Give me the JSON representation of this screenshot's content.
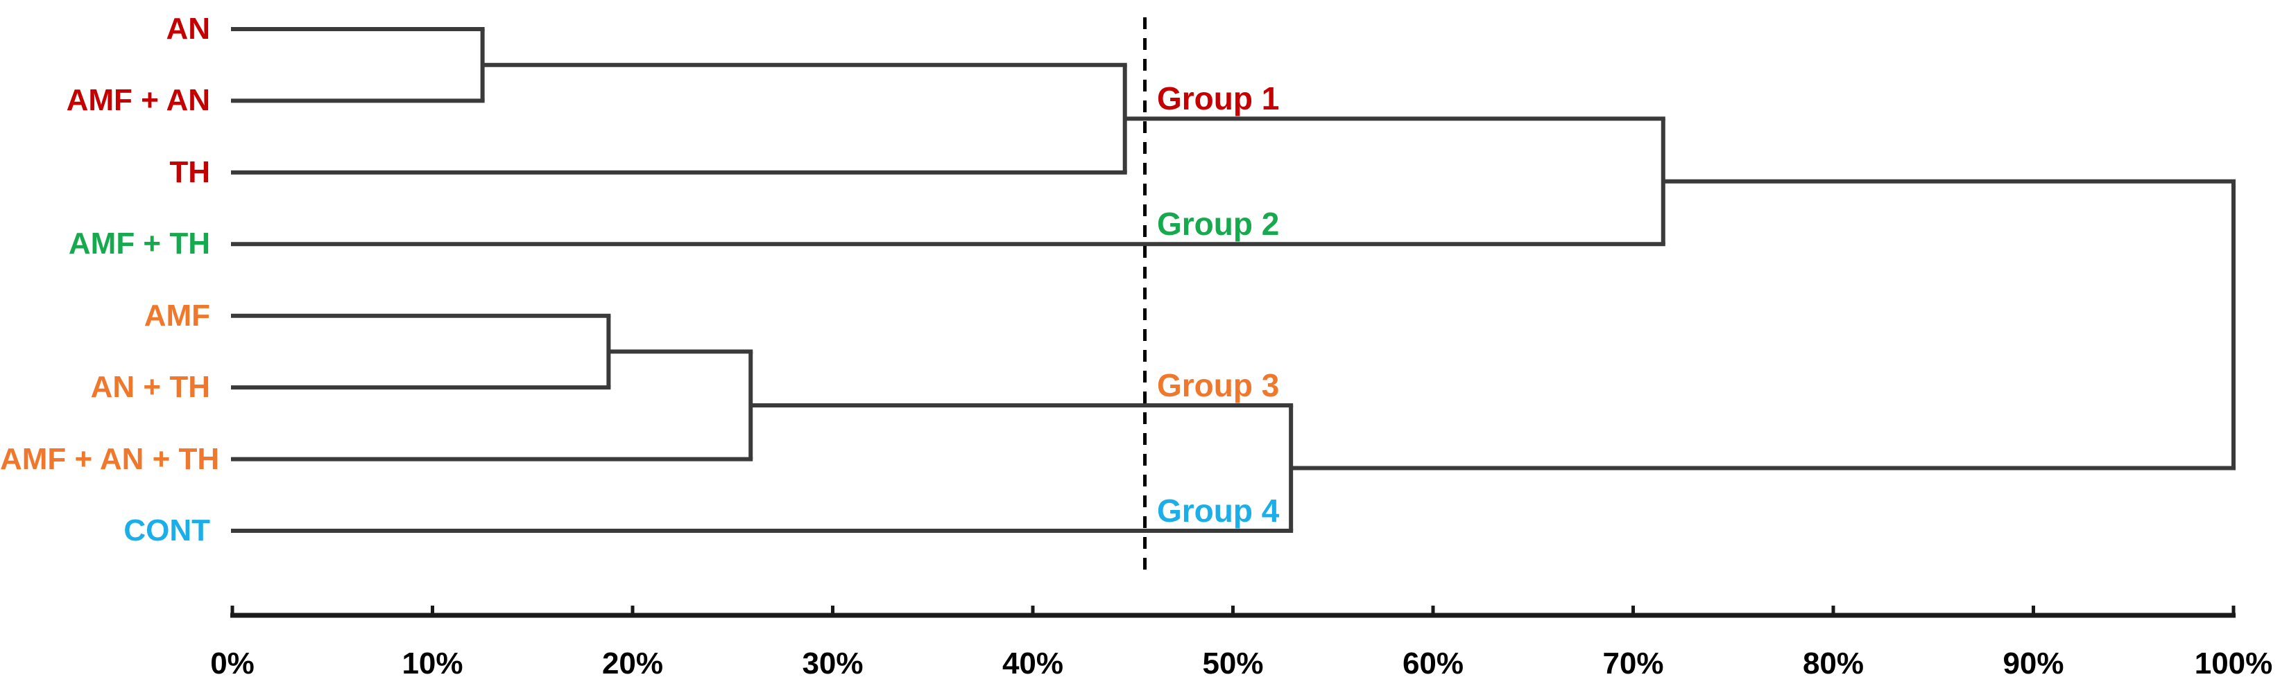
{
  "chart_data": {
    "type": "dendrogram",
    "orientation": "horizontal-left-to-right",
    "similarity_axis": {
      "min_pct": 0,
      "max_pct": 100,
      "step_pct": 10,
      "tick_labels": [
        "0%",
        "10%",
        "20%",
        "30%",
        "40%",
        "50%",
        "60%",
        "70%",
        "80%",
        "90%",
        "100%"
      ]
    },
    "leaves": [
      {
        "label": "AN",
        "color": "#C40000",
        "group": "Group 1"
      },
      {
        "label": "AMF + AN",
        "color": "#C40000",
        "group": "Group 1"
      },
      {
        "label": "TH",
        "color": "#C40000",
        "group": "Group 1"
      },
      {
        "label": "AMF + TH",
        "color": "#17A94E",
        "group": "Group 2"
      },
      {
        "label": "AMF",
        "color": "#F0782D",
        "group": "Group 3"
      },
      {
        "label": "AN + TH",
        "color": "#F0782D",
        "group": "Group 3"
      },
      {
        "label": "AMF + AN + TH",
        "color": "#F0782D",
        "group": "Group 3"
      },
      {
        "label": "CONT",
        "color": "#1BAEE9",
        "group": "Group 4"
      }
    ],
    "merges": [
      {
        "id": "m1",
        "children": [
          "AN",
          "AMF + AN"
        ],
        "distance_pct": 12.5
      },
      {
        "id": "m2",
        "children": [
          "m1",
          "TH"
        ],
        "distance_pct": 44.6
      },
      {
        "id": "m3",
        "children": [
          "m2",
          "AMF + TH"
        ],
        "distance_pct": 71.5
      },
      {
        "id": "m4",
        "children": [
          "AMF",
          "AN + TH"
        ],
        "distance_pct": 18.8
      },
      {
        "id": "m5",
        "children": [
          "m4",
          "AMF + AN + TH"
        ],
        "distance_pct": 25.9
      },
      {
        "id": "m6",
        "children": [
          "m5",
          "CONT"
        ],
        "distance_pct": 52.9
      },
      {
        "id": "root",
        "children": [
          "m3",
          "m6"
        ],
        "distance_pct": 100
      }
    ],
    "cutoff_line_pct": 45.6,
    "groups": [
      {
        "label": "Group 1",
        "color": "#C40000",
        "attach_node": "m2",
        "members": [
          "AN",
          "AMF + AN",
          "TH"
        ]
      },
      {
        "label": "Group 2",
        "color": "#17A94E",
        "attach_node": "AMF + TH",
        "members": [
          "AMF + TH"
        ]
      },
      {
        "label": "Group 3",
        "color": "#F0782D",
        "attach_node": "m5",
        "members": [
          "AMF",
          "AN + TH",
          "AMF + AN + TH"
        ]
      },
      {
        "label": "Group 4",
        "color": "#1BAEE9",
        "attach_node": "CONT",
        "members": [
          "CONT"
        ]
      }
    ],
    "line_color": "#3A3A3A",
    "axis_color": "#1A1A1A",
    "cutoff_color": "#000000"
  }
}
